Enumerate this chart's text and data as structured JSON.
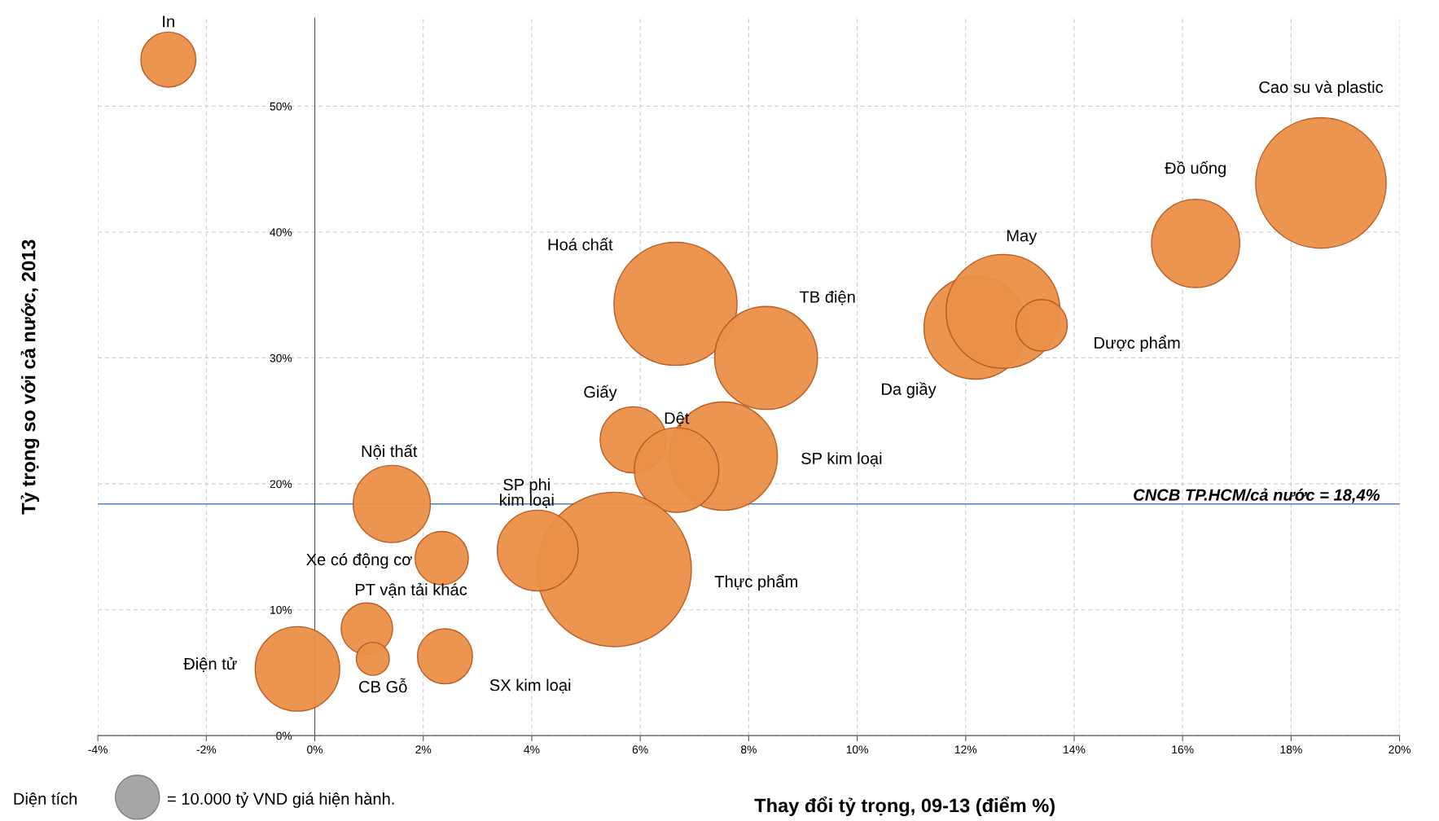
{
  "chart_data": {
    "type": "bubble",
    "xlabel": "Thay đổi tỷ trọng, 09-13 (điểm %)",
    "ylabel": "Tỷ trọng so với cả nước, 2013",
    "xlim": [
      -4,
      20
    ],
    "xticks": [
      {
        "value": -4,
        "label": "-4%"
      },
      {
        "value": -2,
        "label": "-2%"
      },
      {
        "value": 0,
        "label": "0%"
      },
      {
        "value": 2,
        "label": "2%"
      },
      {
        "value": 4,
        "label": "4%"
      },
      {
        "value": 6,
        "label": "6%"
      },
      {
        "value": 8,
        "label": "8%"
      },
      {
        "value": 10,
        "label": "10%"
      },
      {
        "value": 12,
        "label": "12%"
      },
      {
        "value": 14,
        "label": "14%"
      },
      {
        "value": 16,
        "label": "16%"
      },
      {
        "value": 18,
        "label": "18%"
      },
      {
        "value": 20,
        "label": "20%"
      }
    ],
    "ylim": [
      0,
      57
    ],
    "yticks": [
      {
        "value": 0,
        "label": "0%"
      },
      {
        "value": 10,
        "label": "10%"
      },
      {
        "value": 20,
        "label": "20%"
      },
      {
        "value": 30,
        "label": "30%"
      },
      {
        "value": 40,
        "label": "40%"
      },
      {
        "value": 50,
        "label": "50%"
      }
    ],
    "grid": true,
    "size_legend": [
      {
        "value": 10000,
        "label": "= 10.000 tỷ VND giá hiện hành."
      }
    ],
    "series": [
      {
        "name": "In",
        "color": "#eb8f47",
        "x": [
          -2.7
        ],
        "values": [
          53.7
        ],
        "sizes": [
          15600
        ]
      },
      {
        "name": "Cao su và plastic",
        "color": "#eb8f47",
        "x": [
          18.55
        ],
        "values": [
          43.9
        ],
        "sizes": [
          87500
        ]
      },
      {
        "name": "Đồ uống",
        "color": "#eb8f47",
        "x": [
          16.24
        ],
        "values": [
          39.1
        ],
        "sizes": [
          40000
        ]
      },
      {
        "name": "Da giầy",
        "color": "#eb8f47",
        "x": [
          12.18
        ],
        "values": [
          32.4
        ],
        "sizes": [
          54400
        ]
      },
      {
        "name": "May",
        "color": "#eb8f47",
        "x": [
          12.69
        ],
        "values": [
          33.7
        ],
        "sizes": [
          66700
        ]
      },
      {
        "name": "Dược phẩm",
        "color": "#eb8f47",
        "x": [
          13.4
        ],
        "values": [
          32.6
        ],
        "sizes": [
          13600
        ]
      },
      {
        "name": "Hoá chất",
        "color": "#eb8f47",
        "x": [
          6.65
        ],
        "values": [
          34.3
        ],
        "sizes": [
          77900
        ]
      },
      {
        "name": "TB điện",
        "color": "#eb8f47",
        "x": [
          8.32
        ],
        "values": [
          30.0
        ],
        "sizes": [
          54400
        ]
      },
      {
        "name": "Giấy",
        "color": "#eb8f47",
        "x": [
          5.87
        ],
        "values": [
          23.5
        ],
        "sizes": [
          22500
        ]
      },
      {
        "name": "SP kim loại",
        "color": "#eb8f47",
        "x": [
          7.53
        ],
        "values": [
          22.2
        ],
        "sizes": [
          60400
        ]
      },
      {
        "name": "Dệt",
        "color": "#eb8f47",
        "x": [
          6.67
        ],
        "values": [
          21.1
        ],
        "sizes": [
          36700
        ]
      },
      {
        "name": "Nội thất",
        "color": "#eb8f47",
        "x": [
          1.42
        ],
        "values": [
          18.4
        ],
        "sizes": [
          30600
        ]
      },
      {
        "name": "Thực phẩm",
        "color": "#eb8f47",
        "x": [
          5.52
        ],
        "values": [
          13.2
        ],
        "sizes": [
          122500
        ]
      },
      {
        "name": "SP phi\nkim loại",
        "color": "#eb8f47",
        "x": [
          4.11
        ],
        "values": [
          14.7
        ],
        "sizes": [
          33600
        ]
      },
      {
        "name": "Xe có động cơ",
        "color": "#eb8f47",
        "x": [
          2.34
        ],
        "values": [
          14.1
        ],
        "sizes": [
          14600
        ]
      },
      {
        "name": "PT vận tải khác",
        "color": "#eb8f47",
        "x": [
          0.96
        ],
        "values": [
          8.5
        ],
        "sizes": [
          13600
        ]
      },
      {
        "name": "Điện tử",
        "color": "#eb8f47",
        "x": [
          -0.32
        ],
        "values": [
          5.3
        ],
        "sizes": [
          36700
        ]
      },
      {
        "name": "CB Gỗ",
        "color": "#eb8f47",
        "x": [
          1.07
        ],
        "values": [
          6.1
        ],
        "sizes": [
          5600
        ]
      },
      {
        "name": "SX kim loại",
        "color": "#eb8f47",
        "x": [
          2.4
        ],
        "values": [
          6.3
        ],
        "sizes": [
          15600
        ]
      }
    ],
    "ref_lines": [
      {
        "axis": "y",
        "value": 18.4,
        "label": "CNCB TP.HCM/cả nước = 18,4%",
        "color": "#4f81bd"
      }
    ],
    "annotations": [
      "Diện tích"
    ]
  }
}
